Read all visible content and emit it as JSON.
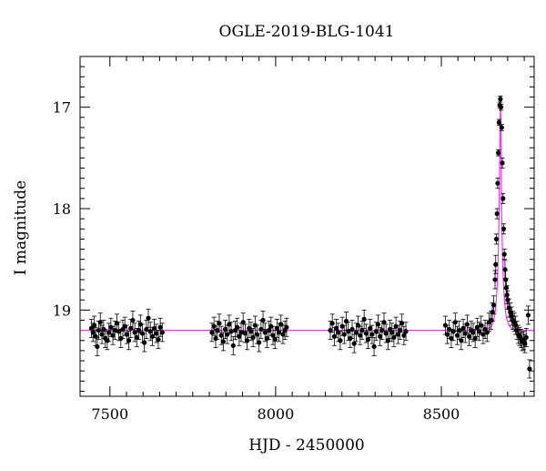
{
  "chart_data": {
    "type": "scatter",
    "title": "OGLE-2019-BLG-1041",
    "xlabel": "HJD - 2450000",
    "ylabel": "I magnitude",
    "xlim": [
      7410,
      8780
    ],
    "ylim": [
      19.85,
      16.5
    ],
    "y_inverted": true,
    "x_ticks": [
      7500,
      8000,
      8500
    ],
    "y_ticks": [
      17,
      18,
      19
    ],
    "x_tick_labels": [
      "7500",
      "8000",
      "8500"
    ],
    "y_tick_labels": [
      "17",
      "18",
      "19"
    ],
    "grid": false,
    "colors": {
      "points": "#000000",
      "model": "#ff33ff",
      "axes": "#000000"
    },
    "series": [
      {
        "points": [
          [
            7444,
            19.18
          ],
          [
            7449,
            19.22
          ],
          [
            7453,
            19.15
          ],
          [
            7457,
            19.26
          ],
          [
            7462,
            19.36
          ],
          [
            7466,
            19.2
          ],
          [
            7471,
            19.12
          ],
          [
            7476,
            19.24
          ],
          [
            7481,
            19.19
          ],
          [
            7486,
            19.28
          ],
          [
            7492,
            19.3
          ],
          [
            7497,
            19.22
          ],
          [
            7503,
            19.17
          ],
          [
            7509,
            19.25
          ],
          [
            7515,
            19.2
          ],
          [
            7521,
            19.13
          ],
          [
            7527,
            19.21
          ],
          [
            7533,
            19.28
          ],
          [
            7539,
            19.19
          ],
          [
            7545,
            19.16
          ],
          [
            7551,
            19.24
          ],
          [
            7557,
            19.3
          ],
          [
            7563,
            19.18
          ],
          [
            7569,
            19.1
          ],
          [
            7575,
            19.22
          ],
          [
            7581,
            19.27
          ],
          [
            7587,
            19.2
          ],
          [
            7592,
            19.14
          ],
          [
            7598,
            19.23
          ],
          [
            7604,
            19.32
          ],
          [
            7610,
            19.19
          ],
          [
            7616,
            19.08
          ],
          [
            7622,
            19.21
          ],
          [
            7628,
            19.26
          ],
          [
            7634,
            19.18
          ],
          [
            7640,
            19.23
          ],
          [
            7646,
            19.29
          ],
          [
            7652,
            19.17
          ],
          [
            7658,
            19.22
          ],
          [
            7808,
            19.22
          ],
          [
            7814,
            19.16
          ],
          [
            7819,
            19.28
          ],
          [
            7824,
            19.2
          ],
          [
            7830,
            19.13
          ],
          [
            7836,
            19.25
          ],
          [
            7842,
            19.31
          ],
          [
            7848,
            19.19
          ],
          [
            7854,
            19.24
          ],
          [
            7860,
            19.14
          ],
          [
            7866,
            19.21
          ],
          [
            7872,
            19.35
          ],
          [
            7878,
            19.2
          ],
          [
            7884,
            19.17
          ],
          [
            7890,
            19.26
          ],
          [
            7896,
            19.22
          ],
          [
            7902,
            19.12
          ],
          [
            7908,
            19.23
          ],
          [
            7914,
            19.3
          ],
          [
            7920,
            19.18
          ],
          [
            7926,
            19.21
          ],
          [
            7932,
            19.27
          ],
          [
            7938,
            19.15
          ],
          [
            7944,
            19.24
          ],
          [
            7950,
            19.32
          ],
          [
            7956,
            19.19
          ],
          [
            7962,
            19.1
          ],
          [
            7968,
            19.22
          ],
          [
            7974,
            19.28
          ],
          [
            7980,
            19.2
          ],
          [
            7986,
            19.16
          ],
          [
            7992,
            19.25
          ],
          [
            7998,
            19.29
          ],
          [
            8004,
            19.18
          ],
          [
            8010,
            19.22
          ],
          [
            8016,
            19.14
          ],
          [
            8022,
            19.24
          ],
          [
            8028,
            19.2
          ],
          [
            8033,
            19.17
          ],
          [
            8165,
            19.2
          ],
          [
            8171,
            19.13
          ],
          [
            8177,
            19.26
          ],
          [
            8183,
            19.18
          ],
          [
            8189,
            19.22
          ],
          [
            8195,
            19.3
          ],
          [
            8201,
            19.16
          ],
          [
            8207,
            19.24
          ],
          [
            8213,
            19.11
          ],
          [
            8219,
            19.21
          ],
          [
            8225,
            19.28
          ],
          [
            8231,
            19.19
          ],
          [
            8237,
            19.33
          ],
          [
            8243,
            19.22
          ],
          [
            8249,
            19.15
          ],
          [
            8255,
            19.25
          ],
          [
            8261,
            19.2
          ],
          [
            8267,
            19.09
          ],
          [
            8273,
            19.23
          ],
          [
            8279,
            19.29
          ],
          [
            8285,
            19.18
          ],
          [
            8291,
            19.24
          ],
          [
            8297,
            19.36
          ],
          [
            8303,
            19.21
          ],
          [
            8309,
            19.14
          ],
          [
            8315,
            19.26
          ],
          [
            8321,
            19.2
          ],
          [
            8327,
            19.12
          ],
          [
            8333,
            19.23
          ],
          [
            8339,
            19.3
          ],
          [
            8345,
            19.19
          ],
          [
            8351,
            19.22
          ],
          [
            8357,
            19.27
          ],
          [
            8363,
            19.16
          ],
          [
            8369,
            19.24
          ],
          [
            8375,
            19.2
          ],
          [
            8381,
            19.13
          ],
          [
            8387,
            19.25
          ],
          [
            8393,
            19.21
          ],
          [
            8512,
            19.15
          ],
          [
            8518,
            19.24
          ],
          [
            8524,
            19.19
          ],
          [
            8530,
            19.28
          ],
          [
            8536,
            19.21
          ],
          [
            8542,
            19.12
          ],
          [
            8548,
            19.25
          ],
          [
            8554,
            19.2
          ],
          [
            8560,
            19.3
          ],
          [
            8566,
            19.18
          ],
          [
            8572,
            19.23
          ],
          [
            8578,
            19.14
          ],
          [
            8584,
            19.26
          ],
          [
            8590,
            19.2
          ],
          [
            8596,
            19.22
          ],
          [
            8602,
            19.28
          ],
          [
            8608,
            19.17
          ],
          [
            8614,
            19.21
          ],
          [
            8620,
            19.15
          ],
          [
            8626,
            19.24
          ],
          [
            8632,
            19.19
          ],
          [
            8638,
            19.22
          ],
          [
            8644,
            19.12
          ],
          [
            8650,
            19.1
          ],
          [
            8654,
            19.02
          ],
          [
            8658,
            18.95
          ],
          [
            8662,
            18.7
          ],
          [
            8664,
            18.55
          ],
          [
            8666,
            18.3
          ],
          [
            8668,
            18.05
          ],
          [
            8670,
            17.75
          ],
          [
            8672,
            17.45
          ],
          [
            8674,
            17.15
          ],
          [
            8676,
            16.98
          ],
          [
            8678,
            16.92
          ],
          [
            8680,
            17.0
          ],
          [
            8682,
            17.2
          ],
          [
            8684,
            17.55
          ],
          [
            8686,
            17.9
          ],
          [
            8688,
            18.2
          ],
          [
            8690,
            18.45
          ],
          [
            8692,
            18.6
          ],
          [
            8694,
            18.7
          ],
          [
            8696,
            18.78
          ],
          [
            8698,
            18.85
          ],
          [
            8700,
            18.9
          ],
          [
            8704,
            18.98
          ],
          [
            8708,
            19.02
          ],
          [
            8712,
            19.06
          ],
          [
            8716,
            19.1
          ],
          [
            8720,
            19.12
          ],
          [
            8724,
            19.15
          ],
          [
            8728,
            19.2
          ],
          [
            8732,
            19.24
          ],
          [
            8736,
            19.26
          ],
          [
            8740,
            19.28
          ],
          [
            8744,
            19.31
          ],
          [
            8748,
            19.3
          ],
          [
            8752,
            19.33
          ],
          [
            8756,
            19.27
          ],
          [
            8762,
            19.05
          ],
          [
            8766,
            19.58
          ]
        ]
      }
    ],
    "model": {
      "baseline": 19.2,
      "peak": 16.92,
      "t0": 8678,
      "tE": 12
    }
  }
}
